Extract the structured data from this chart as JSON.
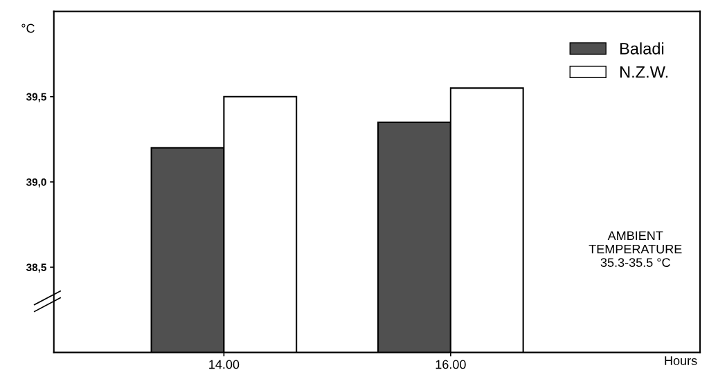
{
  "chart_data": {
    "type": "bar",
    "ylabel": "°C",
    "xlabel": "Hours",
    "categories": [
      "14.00",
      "16.00"
    ],
    "series": [
      {
        "name": "Baladi",
        "color": "#505050",
        "values": [
          39.2,
          39.35
        ]
      },
      {
        "name": "N.Z.W.",
        "color": "#ffffff",
        "values": [
          39.5,
          39.55
        ]
      }
    ],
    "ylim": [
      38.0,
      40.0
    ],
    "yticks": [
      {
        "value": 38.5,
        "label": "38,5"
      },
      {
        "value": 39.0,
        "label": "39,0"
      },
      {
        "value": 39.5,
        "label": "39,5"
      }
    ],
    "legend": "top right",
    "grid": false,
    "annotations": [
      "AMBIENT\nTEMPERATURE\n35.3-35.5 °C"
    ]
  }
}
